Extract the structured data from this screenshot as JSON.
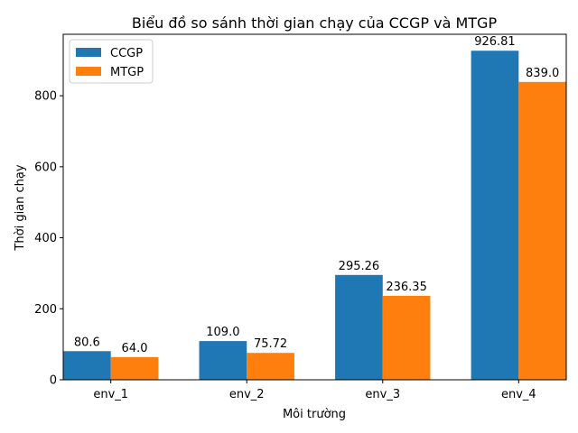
{
  "chart_data": {
    "type": "bar",
    "title": "Biểu đồ so sánh thời gian chạy của CCGP và MTGP",
    "xlabel": "Môi trường",
    "ylabel": "Thời gian chạy",
    "categories": [
      "env_1",
      "env_2",
      "env_3",
      "env_4"
    ],
    "series": [
      {
        "name": "CCGP",
        "values": [
          80.6,
          109.0,
          295.26,
          926.81
        ],
        "labels": [
          "80.6",
          "109.0",
          "295.26",
          "926.81"
        ],
        "color": "#1f77b4"
      },
      {
        "name": "MTGP",
        "values": [
          64.0,
          75.72,
          236.35,
          839.0
        ],
        "labels": [
          "64.0",
          "75.72",
          "236.35",
          "839.0"
        ],
        "color": "#ff7f0e"
      }
    ],
    "ylim": [
      0,
      973.15
    ],
    "yticks": [
      0,
      200,
      400,
      600,
      800
    ],
    "legend": "top-left",
    "grid": false
  }
}
